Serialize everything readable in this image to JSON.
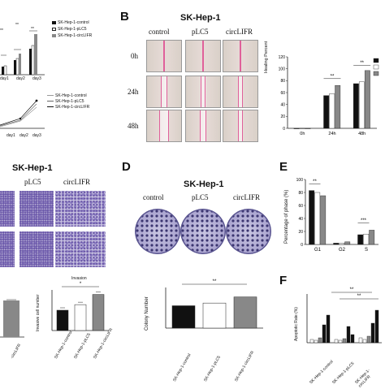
{
  "panel_a": {
    "legend_top": [
      "SK-Hep-1-control",
      "SK-Hep-1-pLC5",
      "SK-Hep-1-circLIFR"
    ],
    "day_labels": [
      "day1",
      "day2",
      "day3"
    ],
    "sig_top": [
      "**",
      "**",
      "**"
    ],
    "legend_bottom": [
      "SK-Hep-1-control",
      "SK-Hep-1-pLC5",
      "SK-Hep-1-circLIFR"
    ],
    "bottom_x": [
      "day1",
      "day2",
      "day3"
    ]
  },
  "panel_b": {
    "letter": "B",
    "title": "SK-Hep-1",
    "columns": [
      "control",
      "pLC5",
      "circLIFR"
    ],
    "rows": [
      "0h",
      "24h",
      "48h"
    ],
    "chart_data": {
      "type": "bar",
      "ylabel": "Healing Percent",
      "categories": [
        "0h",
        "24h",
        "48h"
      ],
      "ylim": [
        0,
        120
      ],
      "yticks": [
        "0",
        "20",
        "40",
        "60",
        "80",
        "100",
        "120"
      ],
      "series": [
        {
          "values": [
            0,
            55,
            75
          ]
        },
        {
          "values": [
            0,
            58,
            78
          ]
        },
        {
          "values": [
            0,
            72,
            97
          ]
        }
      ],
      "colors": [
        "#111111",
        "#ffffff",
        "#888888"
      ],
      "annotations": [
        "**",
        "**"
      ]
    }
  },
  "panel_c": {
    "title": "SK-Hep-1",
    "columns": [
      "pLC5",
      "circLIFR"
    ],
    "right_chart": {
      "title": "Invasion",
      "ylabel": "Invasive cell number",
      "categories": [
        "SK-Hep-1-control",
        "SK-Hep-1-pLC5",
        "SK-Hep-1-circLIFR"
      ],
      "values": [
        200,
        255,
        355
      ],
      "colors": [
        "#111111",
        "#ffffff",
        "#888888"
      ],
      "annotation": "*"
    },
    "left_chart_label": "-circLIFR"
  },
  "panel_d": {
    "letter": "D",
    "title": "SK-Hep-1",
    "columns": [
      "control",
      "pLC5",
      "circLIFR"
    ],
    "chart_data": {
      "type": "bar",
      "ylabel": "Colony Number",
      "categories": [
        "SK-Hep-1-control",
        "SK-Hep-1-pLC5",
        "SK-Hep-1-circLIFR"
      ],
      "values": [
        33,
        37,
        46
      ],
      "colors": [
        "#111111",
        "#ffffff",
        "#888888"
      ],
      "annotation": "**"
    }
  },
  "panel_e": {
    "letter": "E",
    "chart_data": {
      "type": "bar",
      "ylabel": "Percentage of phase (%)",
      "categories": [
        "G1",
        "G2",
        "S"
      ],
      "ylim": [
        0,
        100
      ],
      "yticks": [
        "0",
        "20",
        "40",
        "60",
        "80",
        "100"
      ],
      "series": [
        {
          "values": [
            83,
            2,
            15
          ]
        },
        {
          "values": [
            80,
            2,
            16
          ]
        },
        {
          "values": [
            75,
            4,
            22
          ]
        }
      ],
      "colors": [
        "#111111",
        "#ffffff",
        "#888888"
      ],
      "annotations": [
        "**",
        "***"
      ]
    }
  },
  "panel_f": {
    "letter": "F",
    "chart_data": {
      "type": "bar",
      "ylabel": "Apoptotic Rate (%)",
      "categories": [
        "SK-Hep-1-control",
        "SK-Hep-1-pLC5",
        "SK-Hep-1-circLIFR"
      ],
      "annotations": [
        "**",
        "**"
      ]
    }
  }
}
